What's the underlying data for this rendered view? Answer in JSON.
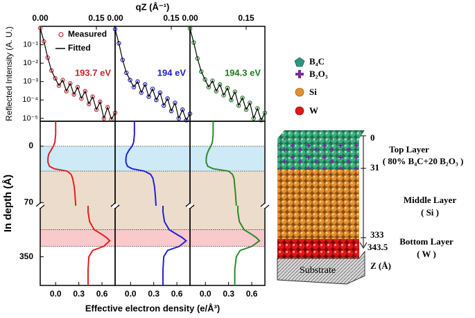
{
  "chart_data": [
    {
      "type": "line",
      "scale": "log",
      "xlabel": "qZ (Å⁻¹)",
      "ylabel": "Reflected Intensity (A. U.)",
      "x": [
        0,
        0.01,
        0.02,
        0.03,
        0.04,
        0.05,
        0.06,
        0.07,
        0.08,
        0.09,
        0.1,
        0.11,
        0.12,
        0.13,
        0.14,
        0.15,
        0.16,
        0.17,
        0.18,
        0.19,
        0.2
      ],
      "xlim": [
        0,
        0.2
      ],
      "xticks": [
        {
          "value": 0,
          "label": "0.00"
        },
        {
          "value": 0.15,
          "label": "0.15"
        }
      ],
      "ylim": [
        7e-06,
        1
      ],
      "yticks": [
        {
          "value": 1e-05,
          "label": "10⁻⁵"
        },
        {
          "value": 0.0001,
          "label": "10⁻⁴"
        },
        {
          "value": 0.001,
          "label": "10⁻³"
        },
        {
          "value": 0.01,
          "label": "10⁻²"
        },
        {
          "value": 0.1,
          "label": "10⁻¹"
        }
      ],
      "series": [
        {
          "name": "Measured",
          "color": "#c0282a",
          "marker": "circle",
          "values": [
            0.8,
            0.15,
            0.02,
            0.004,
            0.0015,
            0.0006,
            0.0012,
            0.0003,
            0.0008,
            0.0002,
            0.0005,
            0.00012,
            0.0003,
            6e-05,
            0.00015,
            3e-05,
            8e-05,
            1e-05,
            4e-05,
            9e-06,
            2e-05
          ]
        },
        {
          "name": "Fitted",
          "color": "#000000",
          "values": [
            0.8,
            0.15,
            0.02,
            0.004,
            0.0015,
            0.0006,
            0.0012,
            0.0003,
            0.0008,
            0.0002,
            0.0005,
            0.00012,
            0.0003,
            6e-05,
            0.00015,
            3e-05,
            8e-05,
            1e-05,
            4e-05,
            9e-06,
            2e-05
          ]
        }
      ],
      "annotation": {
        "text": "193.7 eV",
        "color": "#c0282a"
      }
    },
    {
      "type": "line",
      "scale": "log",
      "x": [
        0,
        0.01,
        0.02,
        0.03,
        0.04,
        0.05,
        0.06,
        0.07,
        0.08,
        0.09,
        0.1,
        0.11,
        0.12,
        0.13,
        0.14,
        0.15,
        0.16,
        0.17,
        0.18,
        0.19,
        0.2
      ],
      "xlim": [
        0,
        0.2
      ],
      "xticks": [
        {
          "value": 0,
          "label": "0.00"
        },
        {
          "value": 0.15,
          "label": "0.15"
        }
      ],
      "ylim": [
        7e-06,
        1
      ],
      "series": [
        {
          "color": "#1c1cc8",
          "marker": "circle",
          "values": [
            0.7,
            0.12,
            0.015,
            0.003,
            0.0012,
            0.0005,
            0.001,
            0.00025,
            0.0007,
            0.00015,
            0.0004,
            0.0001,
            0.00025,
            5e-05,
            0.00012,
            2.5e-05,
            7e-05,
            1e-05,
            3e-05,
            8e-06,
            1.8e-05
          ]
        },
        {
          "color": "#000000",
          "values": [
            0.7,
            0.12,
            0.015,
            0.003,
            0.0012,
            0.0005,
            0.001,
            0.00025,
            0.0007,
            0.00015,
            0.0004,
            0.0001,
            0.00025,
            5e-05,
            0.00012,
            2.5e-05,
            7e-05,
            1e-05,
            3e-05,
            8e-06,
            1.8e-05
          ]
        }
      ],
      "annotation": {
        "text": "194 eV",
        "color": "#1c1cc8"
      }
    },
    {
      "type": "line",
      "scale": "log",
      "x": [
        0,
        0.01,
        0.02,
        0.03,
        0.04,
        0.05,
        0.06,
        0.07,
        0.08,
        0.09,
        0.1,
        0.11,
        0.12,
        0.13,
        0.14,
        0.15,
        0.16,
        0.17,
        0.18,
        0.19,
        0.2
      ],
      "xlim": [
        0,
        0.2
      ],
      "xticks": [
        {
          "value": 0,
          "label": "0.00"
        },
        {
          "value": 0.15,
          "label": "0.15"
        }
      ],
      "ylim": [
        7e-06,
        1
      ],
      "series": [
        {
          "color": "#1f7a1f",
          "marker": "circle",
          "values": [
            0.75,
            0.13,
            0.018,
            0.0035,
            0.0013,
            0.0005,
            0.0011,
            0.0003,
            0.0007,
            0.00018,
            0.00045,
            0.0001,
            0.00028,
            5e-05,
            0.00013,
            3e-05,
            7e-05,
            1e-05,
            3.5e-05,
            8e-06,
            2e-05
          ]
        },
        {
          "color": "#000000",
          "values": [
            0.75,
            0.13,
            0.018,
            0.0035,
            0.0013,
            0.0005,
            0.0011,
            0.0003,
            0.0007,
            0.00018,
            0.00045,
            0.0001,
            0.00028,
            5e-05,
            0.00013,
            3e-05,
            7e-05,
            1e-05,
            3.5e-05,
            8e-06,
            2e-05
          ]
        }
      ],
      "annotation": {
        "text": "194.3 eV",
        "color": "#1f7a1f"
      }
    },
    {
      "type": "profile",
      "xlabel": "Effective electron density (e/Å³)",
      "ylabel": "In depth (Å)",
      "y": [
        -31,
        -15,
        -5,
        0,
        5,
        10,
        15,
        20,
        25,
        28,
        31,
        35,
        40,
        50,
        60,
        74,
        null,
        318,
        322,
        328,
        333,
        336,
        338,
        340,
        343.5,
        346,
        350,
        358,
        368
      ],
      "xlim": [
        -0.2,
        0.77
      ],
      "xticks": [
        {
          "value": 0,
          "label": "0.0"
        },
        0.3,
        0.6
      ],
      "ylim": [
        -31,
        368
      ],
      "ybreak": [
        74,
        318
      ],
      "yticks": [
        0,
        70,
        350
      ],
      "bands": [
        {
          "from": 0,
          "to": 31,
          "color": "#cdeaf6"
        },
        {
          "from": 31,
          "to": 333,
          "color": "#ecdccc"
        },
        {
          "from": 333,
          "to": 343.5,
          "color": "#f9c9cb"
        }
      ],
      "series": [
        {
          "color": "#e02020",
          "values": [
            0,
            0,
            -0.01,
            -0.03,
            -0.06,
            -0.09,
            -0.1,
            -0.1,
            -0.08,
            -0.02,
            0.15,
            0.2,
            0.22,
            0.24,
            0.25,
            0.26,
            null,
            0.42,
            0.42,
            0.44,
            0.5,
            0.6,
            0.66,
            0.7,
            0.62,
            0.48,
            0.43,
            0.42,
            0.42
          ]
        }
      ]
    },
    {
      "type": "profile",
      "y": [
        -31,
        -15,
        -5,
        0,
        5,
        10,
        15,
        20,
        25,
        28,
        31,
        35,
        40,
        50,
        60,
        74,
        null,
        318,
        322,
        328,
        333,
        336,
        338,
        340,
        343.5,
        346,
        350,
        358,
        368
      ],
      "xlim": [
        -0.2,
        0.77
      ],
      "xticks": [
        {
          "value": 0,
          "label": "0.0"
        },
        0.3,
        0.6
      ],
      "ylim": [
        -31,
        368
      ],
      "ybreak": [
        74,
        318
      ],
      "series": [
        {
          "color": "#2020d8",
          "values": [
            0.05,
            0.05,
            0.04,
            0.02,
            -0.02,
            -0.05,
            -0.06,
            -0.06,
            -0.04,
            0.02,
            0.18,
            0.26,
            0.29,
            0.31,
            0.32,
            0.33,
            null,
            0.42,
            0.42,
            0.44,
            0.5,
            0.6,
            0.67,
            0.72,
            0.63,
            0.48,
            0.43,
            0.42,
            0.42
          ]
        }
      ]
    },
    {
      "type": "profile",
      "y": [
        -31,
        -15,
        -5,
        0,
        5,
        10,
        15,
        20,
        25,
        28,
        31,
        35,
        40,
        50,
        60,
        74,
        null,
        318,
        322,
        328,
        333,
        336,
        338,
        340,
        343.5,
        346,
        350,
        358,
        368
      ],
      "xlim": [
        -0.2,
        0.77
      ],
      "xticks": [
        {
          "value": 0,
          "label": "0.0"
        },
        0.3,
        0.6
      ],
      "ylim": [
        -31,
        368
      ],
      "ybreak": [
        74,
        318
      ],
      "series": [
        {
          "color": "#2a8a2a",
          "values": [
            0.1,
            0.1,
            0.09,
            0.07,
            0.04,
            0.02,
            0.01,
            0.01,
            0.03,
            0.1,
            0.3,
            0.35,
            0.37,
            0.38,
            0.39,
            0.4,
            null,
            0.42,
            0.42,
            0.44,
            0.5,
            0.6,
            0.66,
            0.7,
            0.6,
            0.45,
            0.4,
            0.38,
            0.38
          ]
        }
      ]
    }
  ],
  "diagram": {
    "legend": [
      "B₄C",
      "B₂O₃",
      "Si",
      "W"
    ],
    "layers": [
      {
        "name": "Top Layer",
        "desc": "( 80% B₄C+20 B₂O₃ )"
      },
      {
        "name": "Middle Layer",
        "desc": "( Si )"
      },
      {
        "name": "Bottom Layer",
        "desc": "( W )"
      }
    ],
    "depth_ticks": [
      "0",
      "31",
      "333",
      "343.5"
    ],
    "depth_label": "Z (Å)",
    "substrate": "Substrate"
  }
}
